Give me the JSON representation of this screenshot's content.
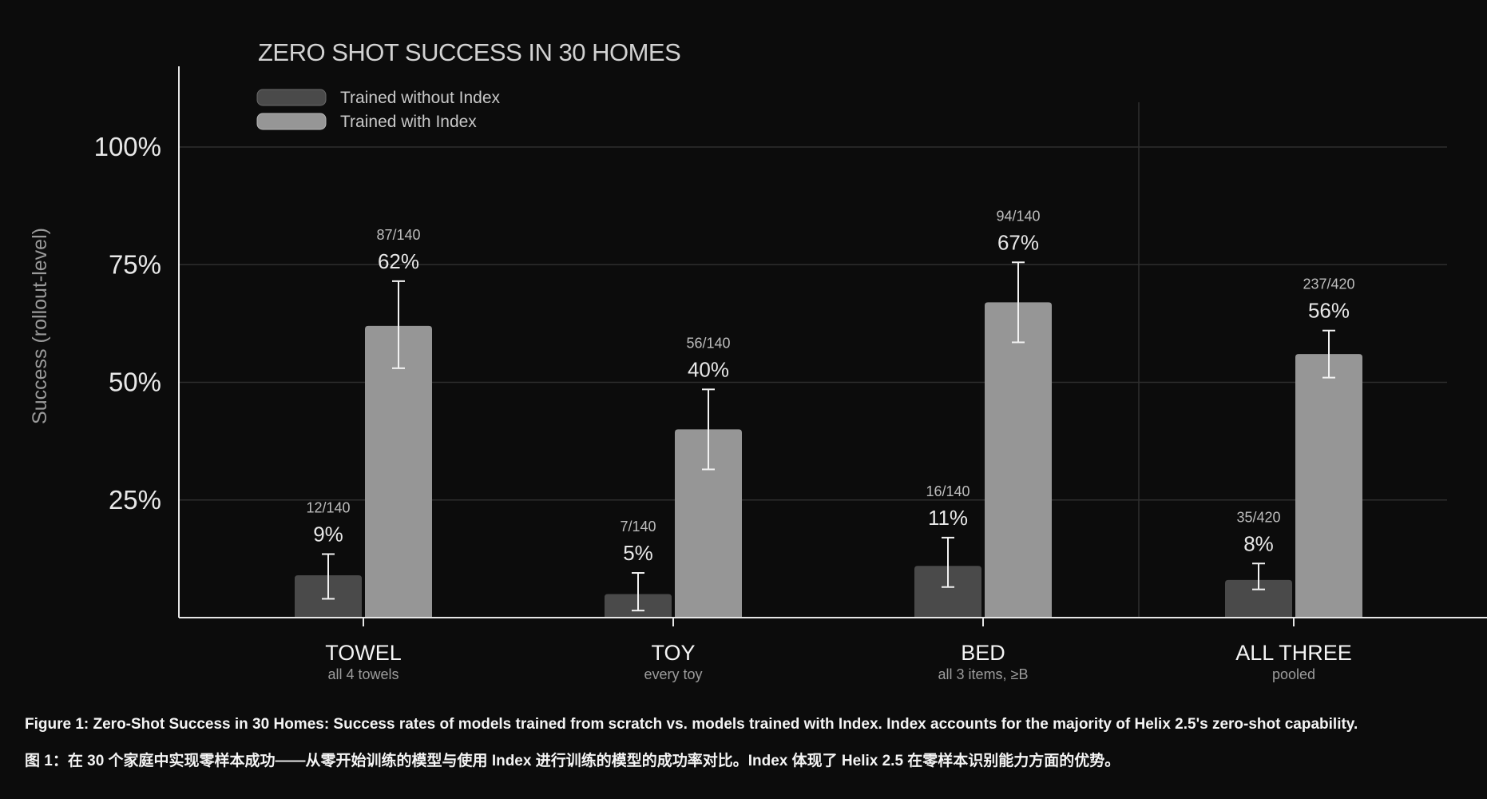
{
  "chart_data": {
    "type": "bar",
    "title": "ZERO SHOT SUCCESS IN 30 HOMES",
    "ylabel": "Success (rollout-level)",
    "ylim": [
      0,
      110
    ],
    "yticks": [
      {
        "value": 25,
        "label": "25%"
      },
      {
        "value": 50,
        "label": "50%"
      },
      {
        "value": 75,
        "label": "75%"
      },
      {
        "value": 100,
        "label": "100%"
      }
    ],
    "grid": true,
    "legend_position": "top-left",
    "categories": [
      {
        "name": "TOWEL",
        "sublabel": "all 4 towels"
      },
      {
        "name": "TOY",
        "sublabel": "every toy"
      },
      {
        "name": "BED",
        "sublabel": "all 3 items, ≥B"
      },
      {
        "name": "ALL THREE",
        "sublabel": "pooled"
      }
    ],
    "series": [
      {
        "name": "Trained without Index",
        "color": "#4a4a4a",
        "values": [
          9,
          5,
          11,
          8
        ],
        "labels": [
          "9%",
          "5%",
          "11%",
          "8%"
        ],
        "counts": [
          "12/140",
          "7/140",
          "16/140",
          "35/420"
        ],
        "error_low": [
          4,
          1.5,
          6.5,
          6
        ],
        "error_high": [
          13.5,
          9.5,
          17,
          11.5
        ]
      },
      {
        "name": "Trained with Index",
        "color": "#969696",
        "values": [
          62,
          40,
          67,
          56
        ],
        "labels": [
          "62%",
          "40%",
          "67%",
          "56%"
        ],
        "counts": [
          "87/140",
          "56/140",
          "94/140",
          "237/420"
        ],
        "error_low": [
          53,
          31.5,
          58.5,
          51
        ],
        "error_high": [
          71.5,
          48.5,
          75.5,
          61
        ]
      }
    ]
  },
  "captions": {
    "english": "Figure 1: Zero-Shot Success in 30 Homes: Success rates of models trained from scratch vs. models trained with Index. Index accounts for the majority of Helix 2.5's zero-shot capability.",
    "chinese": "图 1：在 30 个家庭中实现零样本成功——从零开始训练的模型与使用 Index 进行训练的模型的成功率对比。Index 体现了 Helix 2.5 在零样本识别能力方面的优势。"
  }
}
